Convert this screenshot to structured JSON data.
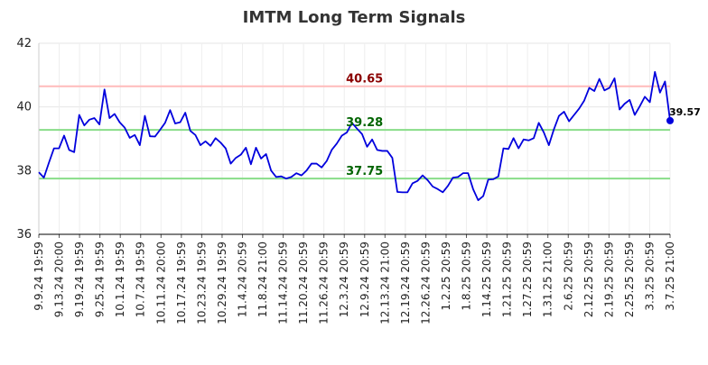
{
  "chart_data": {
    "type": "line",
    "title": "IMTM Long Term Signals",
    "xlabel": "",
    "ylabel": "",
    "ylim": [
      36,
      42
    ],
    "yticks": [
      "36",
      "38",
      "40",
      "42"
    ],
    "grid": true,
    "line_color": "#0000dd",
    "x_tick_labels": [
      "9.9.24 19:59",
      "9.13.24 20:00",
      "9.19.24 19:59",
      "9.25.24 19:59",
      "10.1.24 19:59",
      "10.7.24 19:59",
      "10.11.24 20:00",
      "10.17.24 19:59",
      "10.23.24 19:59",
      "10.29.24 19:59",
      "11.4.24 20:59",
      "11.8.24 21:00",
      "11.14.24 20:59",
      "11.20.24 20:59",
      "11.26.24 20:59",
      "12.3.24 20:59",
      "12.9.24 20:59",
      "12.13.24 21:00",
      "12.19.24 20:59",
      "12.26.24 20:59",
      "1.2.25 20:59",
      "1.8.25 20:59",
      "1.14.25 20:59",
      "1.21.25 20:59",
      "1.27.25 20:59",
      "1.31.25 21:00",
      "2.6.25 20:59",
      "2.12.25 20:59",
      "2.19.25 20:59",
      "2.25.25 20:59",
      "3.3.25 20:59",
      "3.7.25 21:00"
    ],
    "series": [
      {
        "values": [
          37.95,
          37.78,
          38.25,
          38.7,
          38.7,
          39.1,
          38.65,
          38.58,
          39.75,
          39.42,
          39.6,
          39.65,
          39.45,
          40.55,
          39.65,
          39.78,
          39.52,
          39.35,
          39.03,
          39.12,
          38.8,
          39.72,
          39.08,
          39.07,
          39.28,
          39.5,
          39.9,
          39.48,
          39.52,
          39.82,
          39.25,
          39.12,
          38.8,
          38.92,
          38.78,
          39.02,
          38.88,
          38.7,
          38.22,
          38.4,
          38.5,
          38.72,
          38.2,
          38.72,
          38.38,
          38.52,
          38.0,
          37.8,
          37.82,
          37.75,
          37.8,
          37.92,
          37.85,
          38.0,
          38.22,
          38.22,
          38.1,
          38.3,
          38.65,
          38.85,
          39.1,
          39.2,
          39.5,
          39.32,
          39.15,
          38.75,
          38.98,
          38.65,
          38.62,
          38.62,
          38.4,
          37.33,
          37.32,
          37.32,
          37.6,
          37.68,
          37.85,
          37.7,
          37.5,
          37.42,
          37.32,
          37.52,
          37.78,
          37.8,
          37.92,
          37.92,
          37.42,
          37.07,
          37.2,
          37.72,
          37.73,
          37.82,
          38.7,
          38.68,
          39.02,
          38.7,
          38.98,
          38.95,
          39.02,
          39.5,
          39.2,
          38.8,
          39.3,
          39.72,
          39.85,
          39.55,
          39.75,
          39.95,
          40.2,
          40.6,
          40.5,
          40.88,
          40.52,
          40.6,
          40.9,
          39.92,
          40.1,
          40.22,
          39.75,
          40.02,
          40.32,
          40.15,
          41.1,
          40.45,
          40.8,
          39.57
        ]
      }
    ],
    "levels": [
      {
        "value": 40.65,
        "label": "40.65",
        "line_color": "#ffbbbb",
        "text_color": "#8b0000"
      },
      {
        "value": 39.28,
        "label": "39.28",
        "line_color": "#88dd88",
        "text_color": "#006400"
      },
      {
        "value": 37.75,
        "label": "37.75",
        "line_color": "#88dd88",
        "text_color": "#006400"
      }
    ],
    "last_value": {
      "value": 39.57,
      "label": "39.57",
      "color": "#0000dd"
    }
  }
}
